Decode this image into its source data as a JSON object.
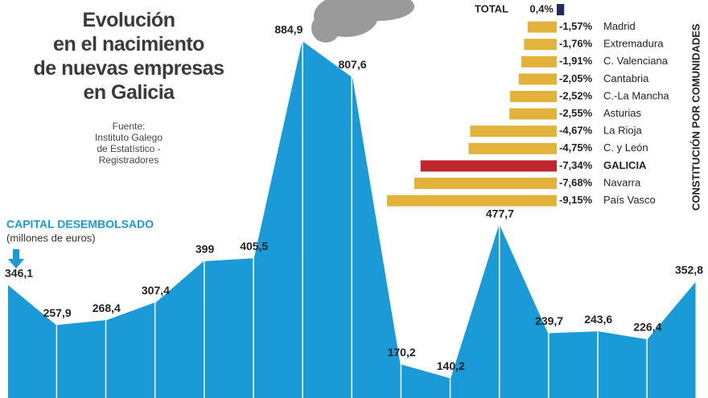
{
  "header": {
    "title": [
      "Evolución",
      "en el nacimiento",
      "de nuevas empresas",
      "en Galicia"
    ],
    "source": [
      "Fuente:",
      "Instituto Galego",
      "de Estatístico -",
      "Registradores"
    ]
  },
  "chart_data": [
    {
      "type": "area",
      "title": "CAPITAL DESEMBOLSADO",
      "subtitle": "(millones de euros)",
      "color": "#1a9ad6",
      "categories": [
        null,
        null,
        null,
        null,
        null,
        null,
        null,
        null,
        null,
        null,
        null,
        null,
        null,
        null,
        null
      ],
      "values": [
        346.1,
        257.9,
        268.4,
        307.4,
        399,
        405.5,
        884.9,
        807.6,
        170.2,
        140.2,
        477.7,
        239.7,
        243.6,
        226.4,
        352.8
      ],
      "value_labels": [
        "346,1",
        "257,9",
        "268,4",
        "307,4",
        "399",
        "405,5",
        "884,9",
        "807,6",
        "170,2",
        "140,2",
        "477,7",
        "239,7",
        "243,6",
        "226,4",
        "352,8"
      ]
    },
    {
      "type": "hbar",
      "title": "CONSTITUCIÓN POR COMUNIDADES",
      "categories": [
        "TOTAL",
        "Madrid",
        "Extremadura",
        "C. Valenciana",
        "Cantabria",
        "C.-La Mancha",
        "Asturias",
        "La Rioja",
        "C. y León",
        "GALICIA",
        "Navarra",
        "País Vasco"
      ],
      "values": [
        0.4,
        -1.57,
        -1.76,
        -1.91,
        -2.05,
        -2.52,
        -2.55,
        -4.67,
        -4.75,
        -7.34,
        -7.68,
        -9.15
      ],
      "value_labels": [
        "0,4%",
        "-1,57%",
        "-1,76%",
        "-1,91%",
        "-2,05%",
        "-2,52%",
        "-2,55%",
        "-4,67%",
        "-4,75%",
        "-7,34%",
        "-7,68%",
        "-9,15%"
      ],
      "colors": [
        "#1f2d5c",
        "#e3b23c",
        "#e3b23c",
        "#e3b23c",
        "#e3b23c",
        "#e3b23c",
        "#e3b23c",
        "#e3b23c",
        "#e3b23c",
        "#c0262e",
        "#e3b23c",
        "#e3b23c"
      ]
    }
  ]
}
